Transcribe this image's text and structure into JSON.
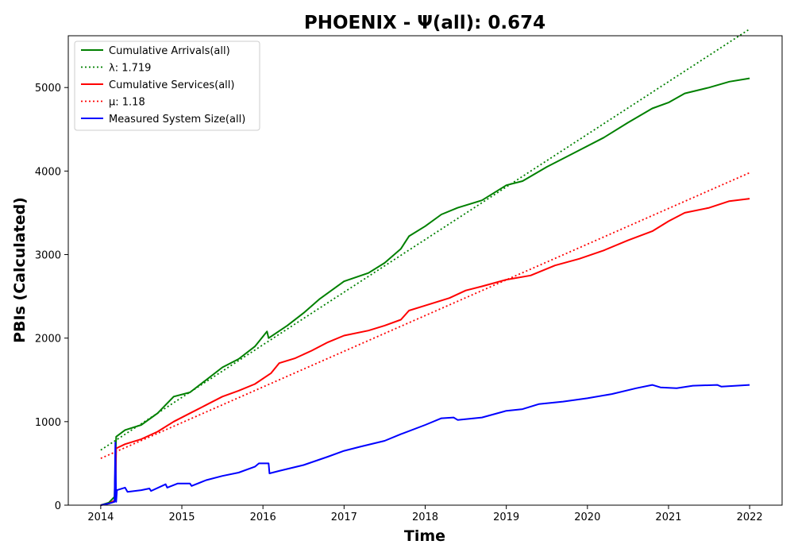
{
  "chart_data": {
    "type": "line",
    "title": "PHOENIX -  Ψ(all): 0.674",
    "xlabel": "Time",
    "ylabel": "PBIs (Calculated)",
    "xlim": [
      2013.6,
      2022.4
    ],
    "ylim": [
      0,
      5620
    ],
    "x_ticks": [
      2014,
      2015,
      2016,
      2017,
      2018,
      2019,
      2020,
      2021,
      2022
    ],
    "y_ticks": [
      0,
      1000,
      2000,
      3000,
      4000,
      5000
    ],
    "grid": false,
    "legend_position": "top-left",
    "series": [
      {
        "name": "Cumulative Arrivals(all)",
        "style": "solid",
        "color": "#008000",
        "points": [
          [
            2014.0,
            0
          ],
          [
            2014.1,
            30
          ],
          [
            2014.17,
            100
          ],
          [
            2014.19,
            820
          ],
          [
            2014.3,
            900
          ],
          [
            2014.5,
            960
          ],
          [
            2014.7,
            1100
          ],
          [
            2014.9,
            1300
          ],
          [
            2015.1,
            1350
          ],
          [
            2015.3,
            1500
          ],
          [
            2015.5,
            1650
          ],
          [
            2015.7,
            1750
          ],
          [
            2015.9,
            1900
          ],
          [
            2016.05,
            2080
          ],
          [
            2016.07,
            2000
          ],
          [
            2016.3,
            2150
          ],
          [
            2016.5,
            2300
          ],
          [
            2016.7,
            2470
          ],
          [
            2017.0,
            2680
          ],
          [
            2017.3,
            2780
          ],
          [
            2017.5,
            2900
          ],
          [
            2017.7,
            3070
          ],
          [
            2017.8,
            3220
          ],
          [
            2018.0,
            3340
          ],
          [
            2018.2,
            3480
          ],
          [
            2018.4,
            3560
          ],
          [
            2018.7,
            3650
          ],
          [
            2019.0,
            3830
          ],
          [
            2019.2,
            3880
          ],
          [
            2019.5,
            4050
          ],
          [
            2019.7,
            4150
          ],
          [
            2019.9,
            4250
          ],
          [
            2020.2,
            4400
          ],
          [
            2020.5,
            4580
          ],
          [
            2020.8,
            4750
          ],
          [
            2021.0,
            4820
          ],
          [
            2021.2,
            4930
          ],
          [
            2021.5,
            5000
          ],
          [
            2021.75,
            5070
          ],
          [
            2022.0,
            5110
          ]
        ]
      },
      {
        "name": "λ: 1.719",
        "style": "dotted",
        "color": "#008000",
        "points": [
          [
            2014.0,
            660
          ],
          [
            2022.0,
            5700
          ]
        ]
      },
      {
        "name": "Cumulative Services(all)",
        "style": "solid",
        "color": "#ff0000",
        "points": [
          [
            2014.0,
            0
          ],
          [
            2014.1,
            20
          ],
          [
            2014.18,
            60
          ],
          [
            2014.19,
            680
          ],
          [
            2014.3,
            730
          ],
          [
            2014.5,
            790
          ],
          [
            2014.7,
            880
          ],
          [
            2014.9,
            1000
          ],
          [
            2015.1,
            1100
          ],
          [
            2015.3,
            1200
          ],
          [
            2015.5,
            1300
          ],
          [
            2015.7,
            1370
          ],
          [
            2015.9,
            1450
          ],
          [
            2016.1,
            1580
          ],
          [
            2016.2,
            1700
          ],
          [
            2016.4,
            1760
          ],
          [
            2016.6,
            1850
          ],
          [
            2016.8,
            1950
          ],
          [
            2017.0,
            2030
          ],
          [
            2017.3,
            2090
          ],
          [
            2017.5,
            2150
          ],
          [
            2017.7,
            2220
          ],
          [
            2017.8,
            2330
          ],
          [
            2018.0,
            2390
          ],
          [
            2018.3,
            2480
          ],
          [
            2018.5,
            2570
          ],
          [
            2018.7,
            2620
          ],
          [
            2019.0,
            2700
          ],
          [
            2019.3,
            2750
          ],
          [
            2019.6,
            2870
          ],
          [
            2019.9,
            2950
          ],
          [
            2020.2,
            3050
          ],
          [
            2020.5,
            3170
          ],
          [
            2020.8,
            3280
          ],
          [
            2021.0,
            3400
          ],
          [
            2021.2,
            3500
          ],
          [
            2021.5,
            3560
          ],
          [
            2021.75,
            3640
          ],
          [
            2022.0,
            3670
          ]
        ]
      },
      {
        "name": "μ: 1.18",
        "style": "dotted",
        "color": "#ff0000",
        "points": [
          [
            2014.0,
            560
          ],
          [
            2022.0,
            3980
          ]
        ]
      },
      {
        "name": "Measured System Size(all)",
        "style": "solid",
        "color": "#0000ff",
        "points": [
          [
            2014.0,
            0
          ],
          [
            2014.1,
            20
          ],
          [
            2014.17,
            40
          ],
          [
            2014.18,
            750
          ],
          [
            2014.19,
            40
          ],
          [
            2014.2,
            180
          ],
          [
            2014.3,
            210
          ],
          [
            2014.33,
            160
          ],
          [
            2014.5,
            180
          ],
          [
            2014.6,
            200
          ],
          [
            2014.62,
            170
          ],
          [
            2014.8,
            250
          ],
          [
            2014.82,
            210
          ],
          [
            2014.95,
            260
          ],
          [
            2015.1,
            260
          ],
          [
            2015.12,
            230
          ],
          [
            2015.3,
            300
          ],
          [
            2015.5,
            350
          ],
          [
            2015.7,
            390
          ],
          [
            2015.9,
            460
          ],
          [
            2015.95,
            500
          ],
          [
            2016.07,
            500
          ],
          [
            2016.08,
            380
          ],
          [
            2016.2,
            410
          ],
          [
            2016.5,
            480
          ],
          [
            2016.8,
            580
          ],
          [
            2017.0,
            650
          ],
          [
            2017.2,
            700
          ],
          [
            2017.5,
            770
          ],
          [
            2017.7,
            850
          ],
          [
            2018.0,
            960
          ],
          [
            2018.2,
            1040
          ],
          [
            2018.35,
            1050
          ],
          [
            2018.4,
            1020
          ],
          [
            2018.7,
            1050
          ],
          [
            2019.0,
            1130
          ],
          [
            2019.2,
            1150
          ],
          [
            2019.4,
            1210
          ],
          [
            2019.7,
            1240
          ],
          [
            2020.0,
            1280
          ],
          [
            2020.3,
            1330
          ],
          [
            2020.6,
            1400
          ],
          [
            2020.8,
            1440
          ],
          [
            2020.9,
            1410
          ],
          [
            2021.1,
            1400
          ],
          [
            2021.3,
            1430
          ],
          [
            2021.6,
            1440
          ],
          [
            2021.65,
            1420
          ],
          [
            2022.0,
            1440
          ]
        ]
      }
    ]
  }
}
